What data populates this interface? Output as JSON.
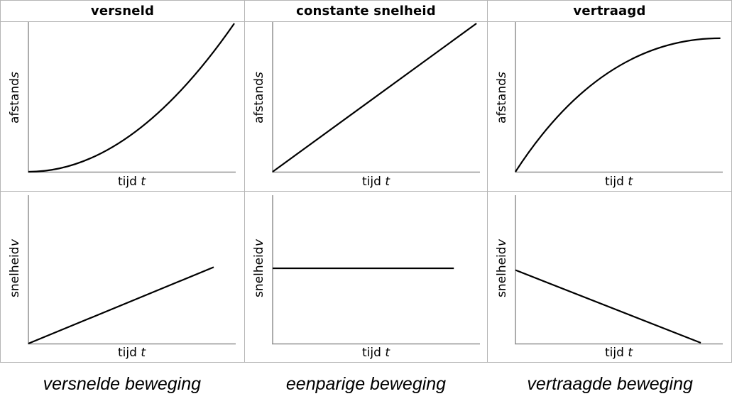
{
  "colors": {
    "background": "#ffffff",
    "curve": "#000000",
    "axis_line": "#919191",
    "table_border": "#b5b5b5",
    "text": "#000000"
  },
  "figure": {
    "columns": [
      {
        "header": "versneld",
        "caption": "versnelde beweging",
        "top": {
          "ylabel": "afstand",
          "yvar": "s",
          "xlabel": "tijd",
          "xvar": "t"
        },
        "bottom": {
          "ylabel": "snelheid",
          "yvar": "v",
          "xlabel": "tijd",
          "xvar": "t"
        }
      },
      {
        "header": "constante snelheid",
        "caption": "eenparige beweging",
        "top": {
          "ylabel": "afstand",
          "yvar": "s",
          "xlabel": "tijd",
          "xvar": "t"
        },
        "bottom": {
          "ylabel": "snelheid",
          "yvar": "v",
          "xlabel": "tijd",
          "xvar": "t"
        }
      },
      {
        "header": "vertraagd",
        "caption": "vertraagde beweging",
        "top": {
          "ylabel": "afstand",
          "yvar": "s",
          "xlabel": "tijd",
          "xvar": "t"
        },
        "bottom": {
          "ylabel": "snelheid",
          "yvar": "v",
          "xlabel": "tijd",
          "xvar": "t"
        }
      }
    ]
  },
  "chart_data": [
    {
      "type": "line",
      "panel": "versneld / afstand-tijd",
      "xlabel": "tijd t",
      "ylabel": "afstand s",
      "xlim": [
        0,
        1
      ],
      "ylim": [
        0,
        1
      ],
      "grid": false,
      "ticks": "none",
      "shape": "quadratic-increasing",
      "x": [
        0,
        0.25,
        0.5,
        0.75,
        1
      ],
      "y": [
        0,
        0.0625,
        0.25,
        0.5625,
        1
      ],
      "geometry": {
        "p0": [
          0,
          0
        ],
        "c": [
          0.5,
          0
        ],
        "p1": [
          1,
          1
        ]
      }
    },
    {
      "type": "line",
      "panel": "versneld / snelheid-tijd",
      "xlabel": "tijd t",
      "ylabel": "snelheid v",
      "xlim": [
        0,
        1
      ],
      "ylim": [
        0,
        1
      ],
      "grid": false,
      "ticks": "none",
      "shape": "linear-increasing",
      "x": [
        0,
        0.45,
        0.9
      ],
      "y": [
        0,
        0.26,
        0.52
      ],
      "geometry": {
        "p0": [
          0,
          0
        ],
        "p1": [
          0.9,
          0.52
        ]
      }
    },
    {
      "type": "line",
      "panel": "constante snelheid / afstand-tijd",
      "xlabel": "tijd t",
      "ylabel": "afstand s",
      "xlim": [
        0,
        1
      ],
      "ylim": [
        0,
        1
      ],
      "grid": false,
      "ticks": "none",
      "shape": "linear-increasing",
      "x": [
        0,
        0.5,
        0.99
      ],
      "y": [
        0,
        0.505,
        1
      ],
      "geometry": {
        "p0": [
          0,
          0
        ],
        "p1": [
          0.99,
          1
        ]
      }
    },
    {
      "type": "line",
      "panel": "constante snelheid / snelheid-tijd",
      "xlabel": "tijd t",
      "ylabel": "snelheid v",
      "xlim": [
        0,
        1
      ],
      "ylim": [
        0,
        1
      ],
      "grid": false,
      "ticks": "none",
      "shape": "constant",
      "x": [
        0,
        0.44,
        0.88
      ],
      "y": [
        0.512,
        0.512,
        0.512
      ],
      "geometry": {
        "p0": [
          0,
          0.512
        ],
        "p1": [
          0.88,
          0.512
        ]
      }
    },
    {
      "type": "line",
      "panel": "vertraagd / afstand-tijd",
      "xlabel": "tijd t",
      "ylabel": "afstand s",
      "xlim": [
        0,
        1
      ],
      "ylim": [
        0,
        1
      ],
      "grid": false,
      "ticks": "none",
      "shape": "concave-down-leveling-off",
      "x": [
        0,
        0.25,
        0.5,
        0.75,
        0.995
      ],
      "y": [
        0,
        0.42,
        0.67,
        0.82,
        0.9
      ],
      "geometry": {
        "p0": [
          0,
          0
        ],
        "c": [
          0.42,
          0.9
        ],
        "p1": [
          0.995,
          0.9
        ]
      }
    },
    {
      "type": "line",
      "panel": "vertraagd / snelheid-tijd",
      "xlabel": "tijd t",
      "ylabel": "snelheid v",
      "xlim": [
        0,
        1
      ],
      "ylim": [
        0,
        1
      ],
      "grid": false,
      "ticks": "none",
      "shape": "linear-decreasing",
      "x": [
        0,
        0.45,
        0.9
      ],
      "y": [
        0.5,
        0.25,
        0.005
      ],
      "geometry": {
        "p0": [
          0,
          0.5
        ],
        "p1": [
          0.9,
          0.005
        ]
      }
    }
  ]
}
